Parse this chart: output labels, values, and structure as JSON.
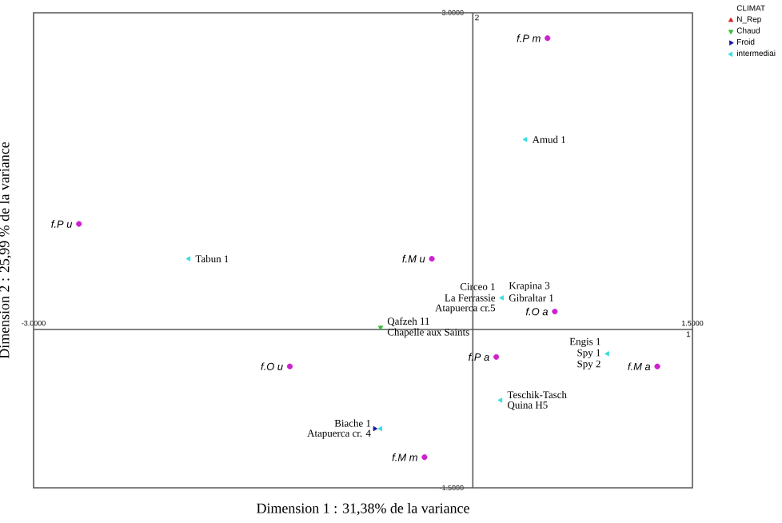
{
  "chart_data": {
    "type": "scatter",
    "xlabel": "Dimension 1 : 31,38% de la variance",
    "ylabel": "Dimension 2 : 25,99 % de la variance",
    "legend_title": "CLIMAT",
    "legend": "top right",
    "grid": false,
    "xlim": [
      -3,
      1.5
    ],
    "ylim": [
      -1.5,
      3
    ],
    "xticks": [
      {
        "value": -3,
        "label": "-3.0000"
      },
      {
        "value": 1.5,
        "label": "1.5000"
      }
    ],
    "yticks": [
      {
        "value": -1.5,
        "label": "-1.5000"
      },
      {
        "value": 3,
        "label": "3.0000"
      }
    ],
    "series": [
      {
        "color": "#cc22cc",
        "marker": "circle",
        "x": [
          0.51,
          -2.69,
          -0.28,
          0.56,
          -1.25,
          0.16,
          1.26,
          -0.33
        ],
        "values": [
          2.76,
          1.0,
          0.67,
          0.17,
          -0.35,
          -0.26,
          -0.35,
          -1.21
        ]
      },
      {
        "name": "N_Rep",
        "color": "#dd2222",
        "marker": "triangle"
      },
      {
        "name": "Chaud",
        "color": "#33bb33",
        "marker": "triangle",
        "x": [
          -0.63
        ],
        "values": [
          0.02
        ]
      },
      {
        "name": "Froid",
        "color": "#1a1a99",
        "marker": "triangle",
        "x": [
          -0.67
        ],
        "values": [
          -0.94
        ]
      },
      {
        "name": "intermediai",
        "color": "#33dddd",
        "marker": "triangle",
        "x": [
          0.36,
          -1.94,
          0.2,
          0.92,
          0.19,
          -0.63
        ],
        "values": [
          1.8,
          0.67,
          0.3,
          -0.23,
          -0.67,
          -0.94
        ]
      }
    ],
    "annotations": [
      "2",
      "1",
      {
        "text": "f.P m",
        "x": 0.51,
        "y": 2.76
      },
      {
        "text": "f.P u",
        "x": -2.69,
        "y": 1.0
      },
      {
        "text": "f.M u",
        "x": -0.28,
        "y": 0.67
      },
      {
        "text": "f.O a",
        "x": 0.56,
        "y": 0.17
      },
      {
        "text": "f.O u",
        "x": -1.25,
        "y": -0.35
      },
      {
        "text": "f.P a",
        "x": 0.16,
        "y": -0.26
      },
      {
        "text": "f.M a",
        "x": 1.26,
        "y": -0.35
      },
      {
        "text": "f.M m",
        "x": -0.33,
        "y": -1.21
      },
      {
        "text": "Amud 1",
        "x": 0.36,
        "y": 1.8
      },
      {
        "text": "Tabun 1",
        "x": -1.94,
        "y": 0.67
      },
      {
        "text": "Circeo 1",
        "x": 0.2,
        "y": 0.3
      },
      {
        "text": "Krapina 3",
        "x": 0.2,
        "y": 0.3
      },
      {
        "text": "La Ferrassie",
        "x": 0.2,
        "y": 0.3
      },
      {
        "text": "Gibraltar 1",
        "x": 0.2,
        "y": 0.3
      },
      {
        "text": "Atapuerca cr.5",
        "x": 0.2,
        "y": 0.3
      },
      {
        "text": "Engis 1",
        "x": 0.92,
        "y": -0.23
      },
      {
        "text": "Spy 1",
        "x": 0.92,
        "y": -0.23
      },
      {
        "text": "Spy 2",
        "x": 0.92,
        "y": -0.23
      },
      {
        "text": "Teschik-Tasch",
        "x": 0.19,
        "y": -0.67
      },
      {
        "text": "Quina H5",
        "x": 0.19,
        "y": -0.67
      },
      {
        "text": "Qafzeh 11",
        "x": -0.63,
        "y": 0.02
      },
      {
        "text": "Chapelle aux Saints",
        "x": -0.63,
        "y": 0.02
      },
      {
        "text": "Biache 1",
        "x": -0.65,
        "y": -0.94
      },
      {
        "text": "Atapuerca cr. 4",
        "x": -0.65,
        "y": -0.94
      }
    ]
  }
}
